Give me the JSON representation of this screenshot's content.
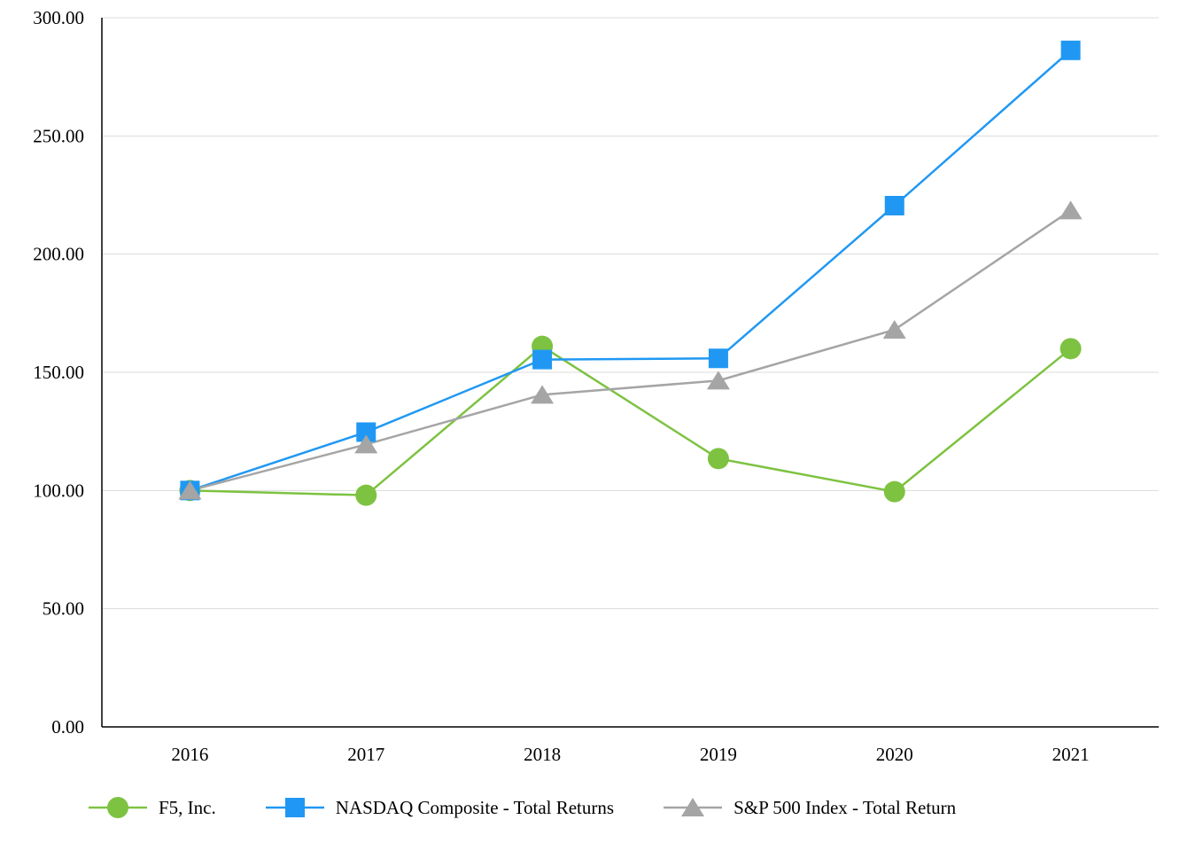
{
  "chart_data": {
    "type": "line",
    "title": "",
    "xlabel": "",
    "ylabel": "",
    "categories": [
      "2016",
      "2017",
      "2018",
      "2019",
      "2020",
      "2021"
    ],
    "series": [
      {
        "id": "f5",
        "name": "F5, Inc.",
        "marker": "circle",
        "color": "#7DC241",
        "values": [
          100,
          98,
          161,
          113.5,
          99.5,
          160
        ]
      },
      {
        "id": "nasdaq",
        "name": "NASDAQ Composite - Total Returns",
        "marker": "square",
        "color": "#2098F3",
        "values": [
          100,
          124.7,
          155.4,
          155.9,
          220.5,
          286.2
        ]
      },
      {
        "id": "sp500",
        "name": "S&P 500 Index - Total Return",
        "marker": "triangle",
        "color": "#A5A5A5",
        "values": [
          100,
          119.5,
          140.5,
          146.5,
          168,
          218.5
        ]
      }
    ],
    "ylim": [
      0,
      300
    ],
    "ytick_step": 50,
    "ytick_labels": [
      "0.00",
      "50.00",
      "100.00",
      "150.00",
      "200.00",
      "250.00",
      "300.00"
    ],
    "grid": true,
    "legend_position": "bottom"
  },
  "colors": {
    "axis": "#000000",
    "gridline": "#DCDCDC",
    "background": "#FFFFFF"
  }
}
